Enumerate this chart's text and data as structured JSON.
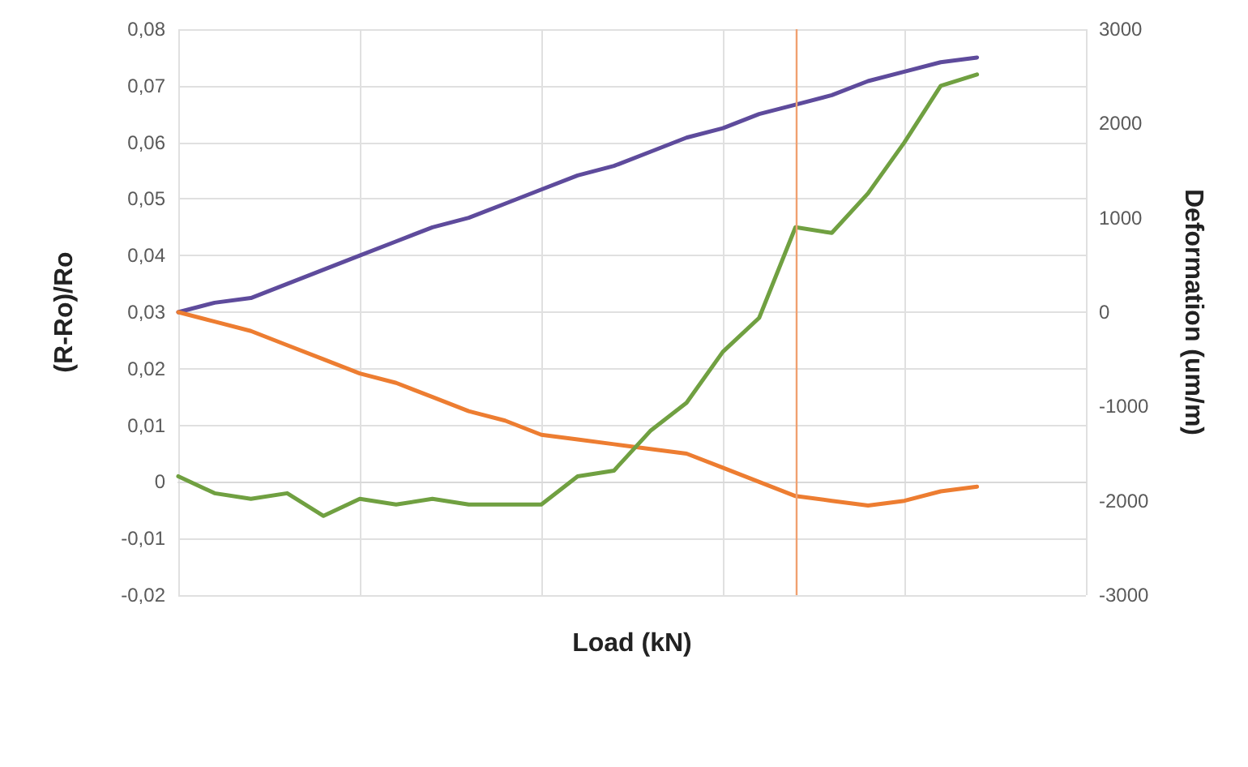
{
  "chart_data": {
    "type": "line",
    "xlabel": "Load (kN)",
    "ylabel": "(R-Ro)/Ro",
    "y2label": "Deformation (um/m)",
    "categories": [
      null,
      null,
      null,
      null,
      null,
      null,
      null,
      null,
      null,
      null,
      null,
      null,
      null,
      null,
      null,
      null,
      null,
      null,
      null,
      null,
      null,
      null,
      null,
      null,
      null,
      null
    ],
    "ylim": [
      -0.02,
      0.08
    ],
    "yticks": [
      {
        "value": -0.02,
        "label": "-0,02"
      },
      {
        "value": -0.01,
        "label": "-0,01"
      },
      {
        "value": 0,
        "label": "0"
      },
      {
        "value": 0.01,
        "label": "0,01"
      },
      {
        "value": 0.02,
        "label": "0,02"
      },
      {
        "value": 0.03,
        "label": "0,03"
      },
      {
        "value": 0.04,
        "label": "0,04"
      },
      {
        "value": 0.05,
        "label": "0,05"
      },
      {
        "value": 0.06,
        "label": "0,06"
      },
      {
        "value": 0.07,
        "label": "0,07"
      },
      {
        "value": 0.08,
        "label": "0,08"
      }
    ],
    "y2lim": [
      -3000,
      3000
    ],
    "y2ticks": [
      -3000,
      -2000,
      -1000,
      0,
      1000,
      2000,
      3000
    ],
    "grid": true,
    "marker": "none",
    "line_style": "solid",
    "series": [
      {
        "color": "#5e4b9c",
        "axis": "y2",
        "values": [
          0,
          100,
          150,
          300,
          450,
          600,
          750,
          900,
          1000,
          1150,
          1300,
          1450,
          1550,
          1700,
          1850,
          1950,
          2100,
          2200,
          2300,
          2450,
          2550,
          2650,
          2700,
          null,
          null,
          null
        ]
      },
      {
        "color": "#ed7d31",
        "axis": "y2",
        "values": [
          0,
          -100,
          -200,
          -350,
          -500,
          -650,
          -750,
          -900,
          -1050,
          -1150,
          -1300,
          -1350,
          -1400,
          -1450,
          -1500,
          -1650,
          -1800,
          -1950,
          -2000,
          -2050,
          -2000,
          -1900,
          -1850,
          null,
          null,
          null
        ]
      },
      {
        "color": "#70a041",
        "axis": "y",
        "values": [
          0.001,
          -0.002,
          -0.003,
          -0.002,
          -0.006,
          -0.003,
          -0.004,
          -0.003,
          -0.004,
          -0.004,
          -0.004,
          0.001,
          0.002,
          0.009,
          0.014,
          0.023,
          0.029,
          0.045,
          0.044,
          0.051,
          0.06,
          0.07,
          0.072,
          null,
          null,
          null
        ]
      }
    ]
  }
}
